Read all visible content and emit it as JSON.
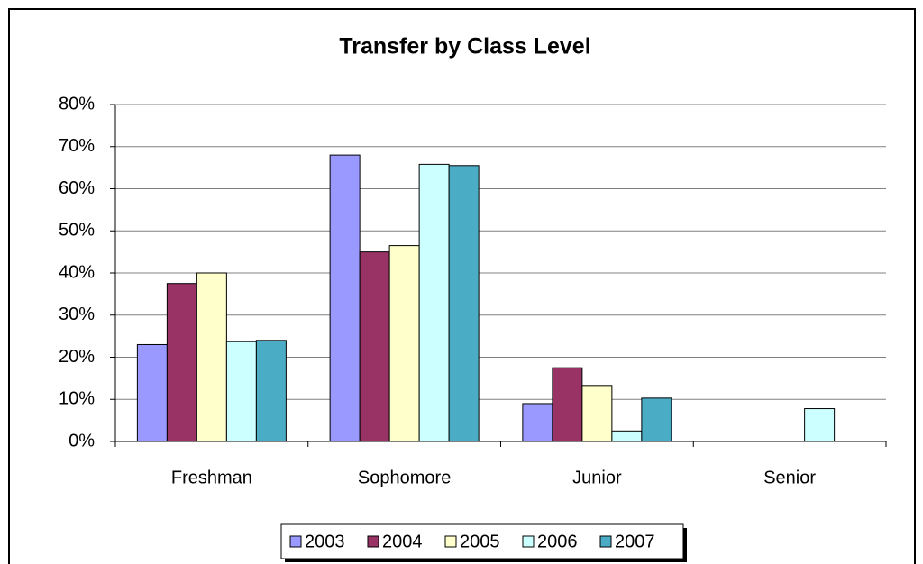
{
  "chart_data": {
    "type": "bar",
    "title": "Transfer by Class Level",
    "categories": [
      "Freshman",
      "Sophomore",
      "Junior",
      "Senior"
    ],
    "series": [
      {
        "name": "2003",
        "color": "#9999ff",
        "values": [
          23,
          68,
          9,
          0
        ]
      },
      {
        "name": "2004",
        "color": "#993366",
        "values": [
          37.5,
          45,
          17.5,
          0
        ]
      },
      {
        "name": "2005",
        "color": "#ffffcc",
        "values": [
          40,
          46.5,
          13.3,
          0
        ]
      },
      {
        "name": "2006",
        "color": "#ccffff",
        "values": [
          23.7,
          65.8,
          2.5,
          7.8
        ]
      },
      {
        "name": "2007",
        "color": "#4bacc6",
        "values": [
          24,
          65.5,
          10.3,
          0
        ]
      }
    ],
    "ylim": [
      0,
      80
    ],
    "yticks": [
      {
        "value": 0,
        "label": "0%"
      },
      {
        "value": 10,
        "label": "10%"
      },
      {
        "value": 20,
        "label": "20%"
      },
      {
        "value": 30,
        "label": "30%"
      },
      {
        "value": 40,
        "label": "40%"
      },
      {
        "value": 50,
        "label": "50%"
      },
      {
        "value": 60,
        "label": "60%"
      },
      {
        "value": 70,
        "label": "70%"
      },
      {
        "value": 80,
        "label": "80%"
      }
    ],
    "grid": true,
    "legend": "bottom"
  }
}
